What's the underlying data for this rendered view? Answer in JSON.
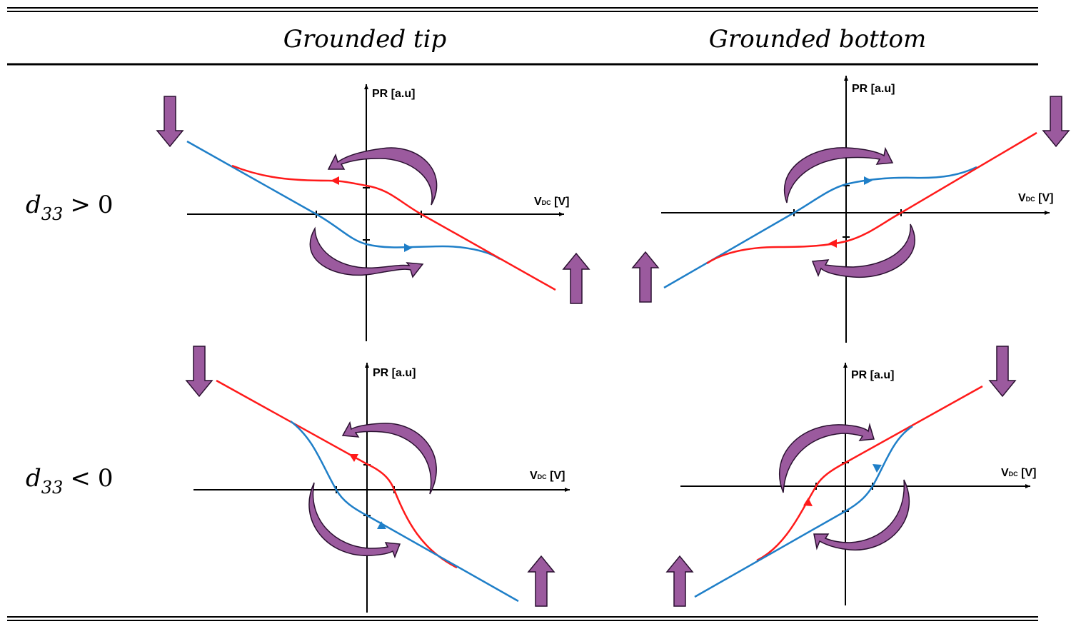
{
  "table": {
    "column_headers": [
      "Grounded tip",
      "Grounded bottom"
    ],
    "rows": [
      {
        "var": "d",
        "sub": "33",
        "op": ">",
        "val": "0"
      },
      {
        "var": "d",
        "sub": "33",
        "op": "<",
        "val": "0"
      }
    ]
  },
  "axis_labels": {
    "y": "PR [a.u]",
    "x_main": "V",
    "x_sub": "DC",
    "x_unit": " [V]"
  },
  "colors": {
    "red_branch": "#ff1a1a",
    "blue_branch": "#1f7fc8",
    "arrow_fill": "#9b5a9e",
    "arrow_stroke": "#2a1030",
    "axis": "#000000"
  },
  "panels": [
    {
      "id": "grounded-tip-d33-positive",
      "column": "Grounded tip",
      "row": "d33 > 0",
      "big_arrow_top": "down",
      "big_arrow_bottom": "up"
    },
    {
      "id": "grounded-bottom-d33-positive",
      "column": "Grounded bottom",
      "row": "d33 > 0",
      "big_arrow_top": "down",
      "big_arrow_bottom": "up"
    },
    {
      "id": "grounded-tip-d33-negative",
      "column": "Grounded tip",
      "row": "d33 < 0",
      "big_arrow_top": "down",
      "big_arrow_bottom": "up"
    },
    {
      "id": "grounded-bottom-d33-negative",
      "column": "Grounded bottom",
      "row": "d33 < 0",
      "big_arrow_top": "down",
      "big_arrow_bottom": "up"
    }
  ]
}
